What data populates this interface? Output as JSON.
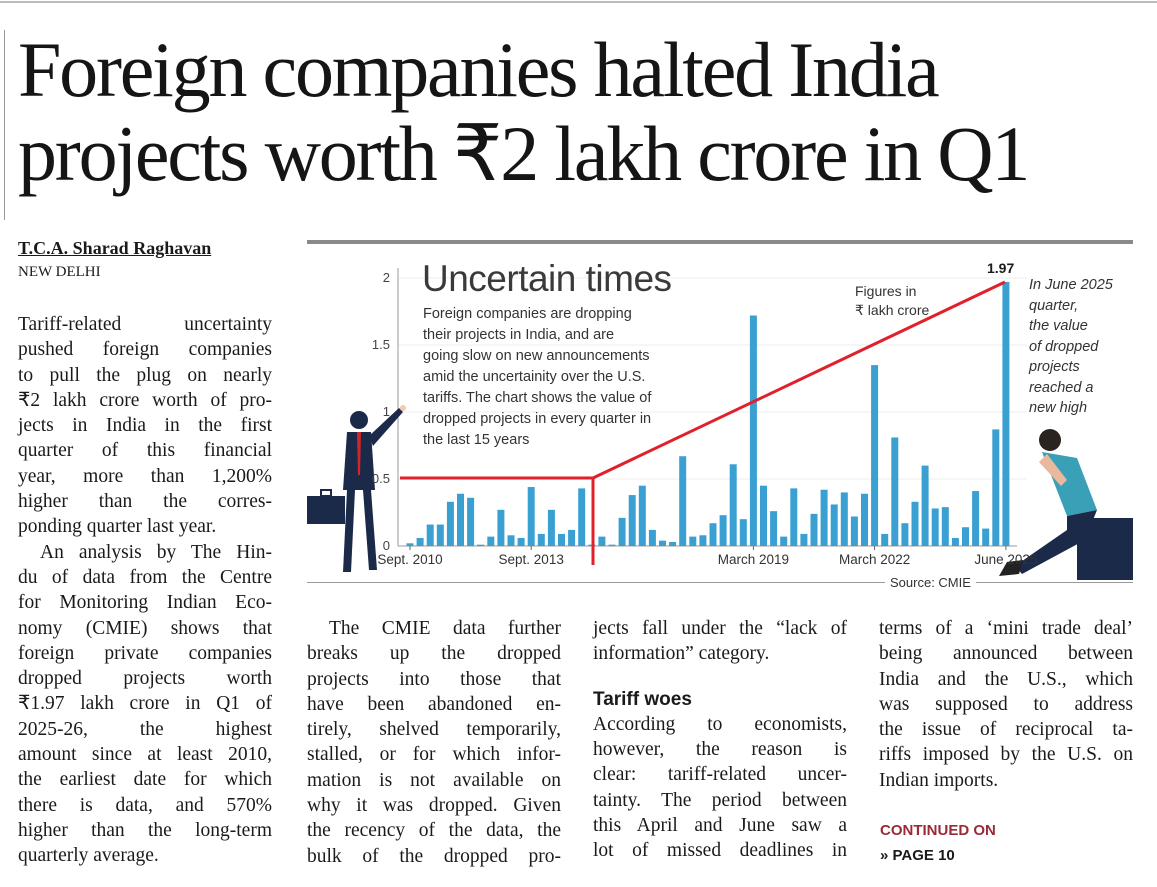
{
  "headline": {
    "line1": "Foreign companies halted India",
    "line2": "projects worth ₹2 lakh crore in Q1"
  },
  "byline": "T.C.A. Sharad Raghavan",
  "dateline": "NEW DELHI",
  "columns": {
    "left": [
      "Tariff-related uncertainty",
      "pushed foreign companies",
      "to pull the plug on nearly",
      "₹2 lakh crore worth of pro-",
      "jects in India in the first",
      "quarter of this financial",
      "year, more than 1,200%",
      "higher than the corres-",
      "ponding quarter last year.",
      "An analysis by The Hin-",
      "du of data from the Centre",
      "for Monitoring Indian Eco-",
      "nomy (CMIE) shows that",
      "foreign private companies",
      "dropped projects worth",
      "₹1.97 lakh crore in Q1 of",
      "2025-26, the highest",
      "amount since at least 2010,",
      "the earliest date for which",
      "there is data, and 570%",
      "higher than the long-term",
      "quarterly average."
    ],
    "second": [
      "The CMIE data further",
      "breaks up the dropped",
      "projects into those that",
      "have been abandoned en-",
      "tirely, shelved temporarily,",
      "stalled, or for which infor-",
      "mation is not available on",
      "why it was dropped. Given",
      "the recency of the data, the",
      "bulk of the dropped pro-"
    ],
    "third": [
      "jects fall under the “lack of",
      "information” category.",
      "",
      "Tariff woes",
      "According to economists,",
      "however, the reason is",
      "clear: tariff-related uncer-",
      "tainty. The period between",
      "this April and June saw a",
      "lot of missed deadlines in"
    ],
    "fourth": [
      "terms of a ‘mini trade deal’",
      "being announced between",
      "India and the U.S., which",
      "was supposed to address",
      "the issue of reciprocal ta-",
      "riffs imposed by the U.S. on",
      "Indian imports."
    ]
  },
  "continued": {
    "label": "CONTINUED ON",
    "page": "» PAGE 10"
  },
  "chart_data": {
    "type": "bar",
    "title": "Uncertain times",
    "description": [
      "Foreign companies are dropping",
      "their projects in India, and are",
      "going slow on new announcements",
      "amid the uncertainity over the U.S.",
      "tariffs. The chart shows the value of",
      "dropped projects in every quarter in",
      "the last 15 years"
    ],
    "units_note": [
      "Figures in",
      "₹ lakh crore"
    ],
    "ylim": [
      0,
      2
    ],
    "yticks": [
      "0",
      "0.5",
      "1",
      "1.5",
      "2"
    ],
    "xticks": [
      {
        "label": "Sept. 2010",
        "index": 0
      },
      {
        "label": "Sept. 2013",
        "index": 12
      },
      {
        "label": "March 2019",
        "index": 34
      },
      {
        "label": "March 2022",
        "index": 46
      },
      {
        "label": "June 2025",
        "index": 59
      }
    ],
    "first_quarter": "Sept. 2010",
    "last_quarter": "June 2025",
    "values": [
      0.02,
      0.06,
      0.16,
      0.16,
      0.33,
      0.39,
      0.36,
      0.01,
      0.07,
      0.27,
      0.08,
      0.06,
      0.44,
      0.09,
      0.27,
      0.09,
      0.12,
      0.43,
      0.01,
      0.07,
      0.01,
      0.21,
      0.38,
      0.45,
      0.12,
      0.04,
      0.03,
      0.67,
      0.07,
      0.08,
      0.17,
      0.23,
      0.61,
      0.2,
      1.72,
      0.45,
      0.26,
      0.07,
      0.43,
      0.09,
      0.24,
      0.42,
      0.31,
      0.4,
      0.22,
      0.39,
      1.35,
      0.09,
      0.81,
      0.17,
      0.33,
      0.6,
      0.28,
      0.29,
      0.06,
      0.14,
      0.41,
      0.13,
      0.87,
      1.97
    ],
    "peak_label": "1.97",
    "annotation": [
      "In June 2025",
      "quarter,",
      "the value",
      "of dropped",
      "projects",
      "reached a",
      "new high"
    ],
    "source": "Source: CMIE",
    "bar_color": "#3a9fd1",
    "highlight_color": "#e0202a"
  }
}
